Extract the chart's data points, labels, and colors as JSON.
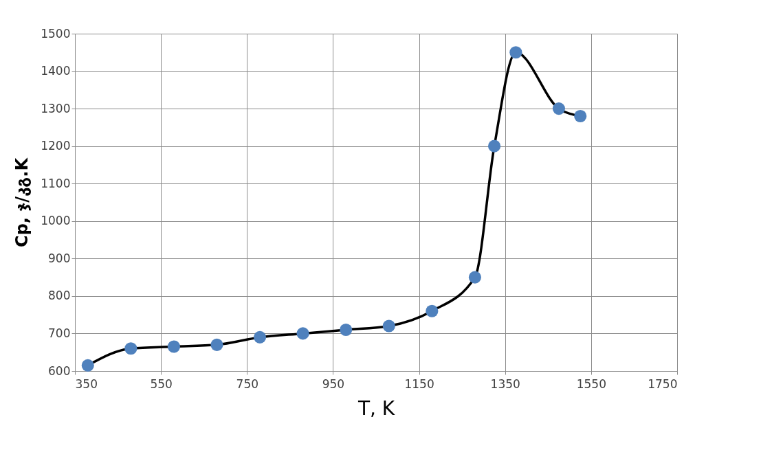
{
  "chart_data": {
    "type": "line",
    "xlabel": "T, K",
    "ylabel": "Cp, ჯ/კგ.K",
    "x": [
      380,
      480,
      580,
      680,
      780,
      880,
      980,
      1080,
      1180,
      1280,
      1325,
      1375,
      1475,
      1525
    ],
    "series": [
      {
        "color": "#4f81bd",
        "values": [
          615,
          660,
          665,
          670,
          690,
          700,
          710,
          720,
          760,
          850,
          1200,
          1450,
          1300,
          1280
        ]
      }
    ],
    "xlim": [
      350,
      1750
    ],
    "xticks": [
      350,
      550,
      750,
      950,
      1150,
      1350,
      1550,
      1750
    ],
    "ylim": [
      600,
      1500
    ],
    "yticks": [
      600,
      700,
      800,
      900,
      1000,
      1100,
      1200,
      1300,
      1400,
      1500
    ],
    "grid": true,
    "marker": "circle",
    "line_style": "solid"
  }
}
